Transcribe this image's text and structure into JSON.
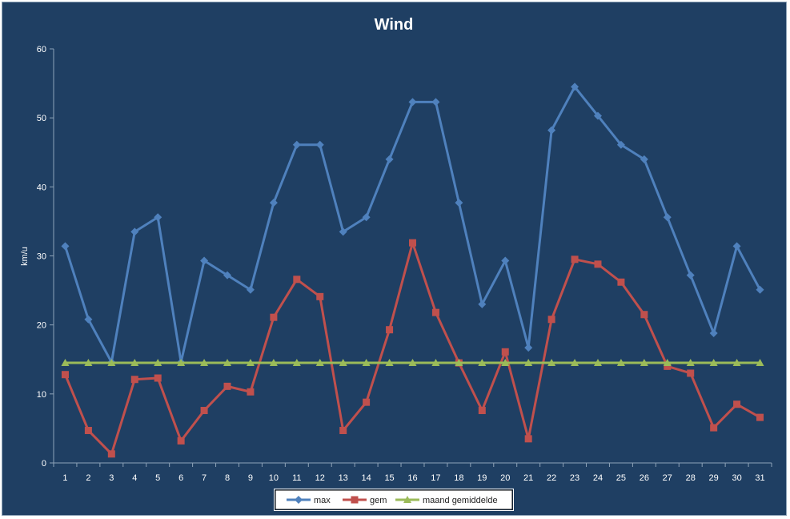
{
  "chart_data": {
    "type": "line",
    "title": "Wind",
    "xlabel": "",
    "ylabel": "km/u",
    "ylim": [
      0,
      60
    ],
    "yticks": [
      0,
      10,
      20,
      30,
      40,
      50,
      60
    ],
    "grid": false,
    "legend_position": "bottom",
    "categories": [
      "1",
      "2",
      "3",
      "4",
      "5",
      "6",
      "7",
      "8",
      "9",
      "10",
      "11",
      "12",
      "13",
      "14",
      "15",
      "16",
      "17",
      "18",
      "19",
      "20",
      "21",
      "22",
      "23",
      "24",
      "25",
      "26",
      "27",
      "28",
      "29",
      "30",
      "31"
    ],
    "series": [
      {
        "name": "max",
        "color": "#4f81bd",
        "marker": "diamond",
        "values": [
          31.4,
          20.8,
          14.6,
          33.5,
          35.6,
          14.6,
          29.3,
          27.2,
          25.1,
          37.7,
          46.1,
          46.1,
          33.5,
          35.6,
          44.0,
          52.3,
          52.3,
          37.7,
          23.0,
          29.3,
          16.7,
          48.2,
          54.5,
          50.3,
          46.1,
          44.0,
          35.6,
          27.2,
          18.8,
          31.4,
          25.1
        ]
      },
      {
        "name": "gem",
        "color": "#c0504d",
        "marker": "square",
        "values": [
          12.8,
          4.7,
          1.3,
          12.1,
          12.3,
          3.2,
          7.6,
          11.1,
          10.3,
          21.1,
          26.6,
          24.1,
          4.7,
          8.8,
          19.3,
          31.9,
          21.8,
          14.5,
          7.6,
          16.1,
          3.5,
          20.8,
          29.5,
          28.8,
          26.2,
          21.5,
          14.0,
          13.0,
          5.1,
          8.5,
          6.6
        ]
      },
      {
        "name": "maand gemiddelde",
        "color": "#9bbb59",
        "marker": "triangle",
        "values": [
          14.5,
          14.5,
          14.5,
          14.5,
          14.5,
          14.5,
          14.5,
          14.5,
          14.5,
          14.5,
          14.5,
          14.5,
          14.5,
          14.5,
          14.5,
          14.5,
          14.5,
          14.5,
          14.5,
          14.5,
          14.5,
          14.5,
          14.5,
          14.5,
          14.5,
          14.5,
          14.5,
          14.5,
          14.5,
          14.5,
          14.5
        ]
      }
    ]
  },
  "colors": {
    "background": "#1f3f63",
    "text": "#ffffff",
    "axis": "#8ea3b8",
    "legend_background": "#ffffff"
  }
}
